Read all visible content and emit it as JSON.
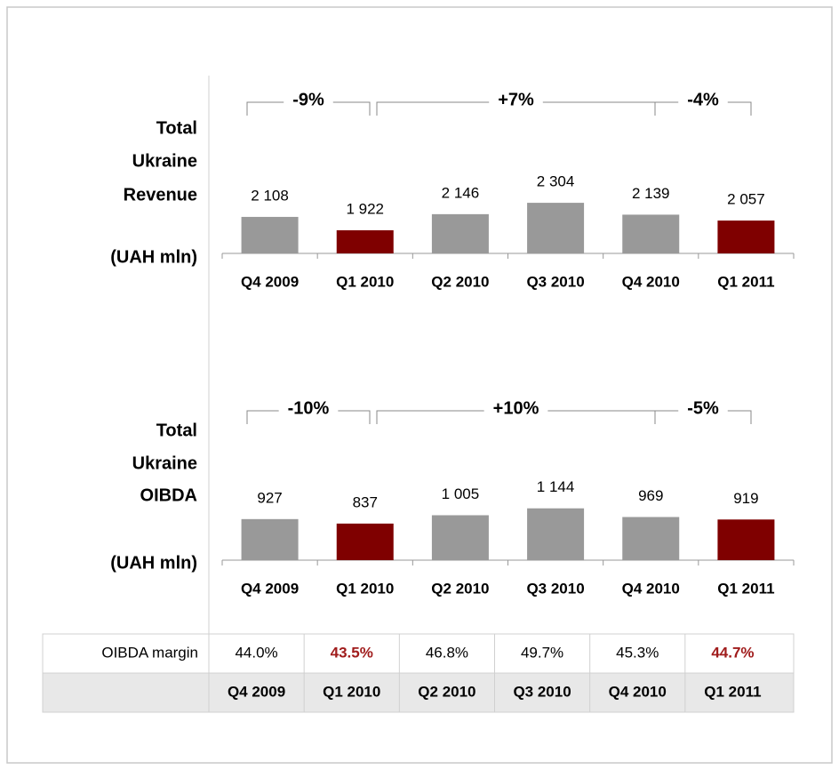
{
  "chart_data": [
    {
      "type": "bar",
      "label_lines": [
        "Total",
        "Ukraine",
        "Revenue"
      ],
      "unit": "(UAH mln)",
      "categories": [
        "Q4 2009",
        "Q1 2010",
        "Q2 2010",
        "Q3 2010",
        "Q4 2010",
        "Q1 2011"
      ],
      "values": [
        2108,
        1922,
        2146,
        2304,
        2139,
        2057
      ],
      "value_labels": [
        "2 108",
        "1 922",
        "2 146",
        "2 304",
        "2 139",
        "2 057"
      ],
      "colors": [
        "#999999",
        "#7f0000",
        "#999999",
        "#999999",
        "#999999",
        "#7f0000"
      ],
      "ylim": [
        1600,
        2800
      ],
      "annotations": [
        "-9%",
        "+7%",
        "-4%"
      ]
    },
    {
      "type": "bar",
      "label_lines": [
        "Total",
        "Ukraine",
        "OIBDA"
      ],
      "unit": "(UAH mln)",
      "categories": [
        "Q4 2009",
        "Q1 2010",
        "Q2 2010",
        "Q3 2010",
        "Q4 2010",
        "Q1 2011"
      ],
      "values": [
        927,
        837,
        1005,
        1144,
        969,
        919
      ],
      "value_labels": [
        "927",
        "837",
        "1 005",
        "1 144",
        "969",
        "919"
      ],
      "colors": [
        "#999999",
        "#7f0000",
        "#999999",
        "#999999",
        "#999999",
        "#7f0000"
      ],
      "ylim": [
        100,
        1300
      ],
      "annotations": [
        "-10%",
        "+10%",
        "-5%"
      ]
    }
  ],
  "table": {
    "row_label": "OIBDA margin",
    "values": [
      "44.0%",
      "43.5%",
      "46.8%",
      "49.7%",
      "45.3%",
      "44.7%"
    ],
    "highlight": [
      false,
      true,
      false,
      false,
      false,
      true
    ],
    "highlight_color": "#a01c1c",
    "header": [
      "Q4 2009",
      "Q1 2010",
      "Q2 2010",
      "Q3 2010",
      "Q4 2010",
      "Q1 2011"
    ]
  }
}
